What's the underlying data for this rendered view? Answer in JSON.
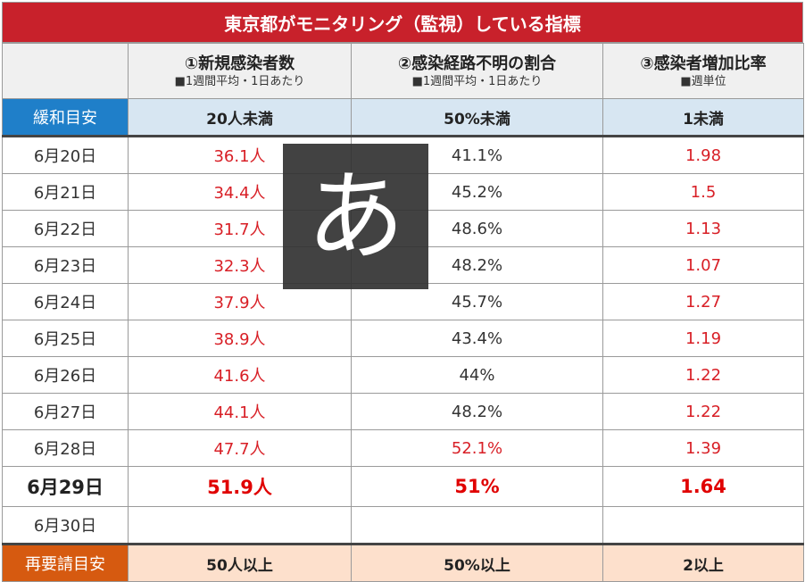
{
  "title": "東京都がモニタリング（監視）している指標",
  "headers": [
    {
      "main": "①新規感染者数",
      "sub": "■1週間平均・1日あたり"
    },
    {
      "main": "②感染経路不明の割合",
      "sub": "■1週間平均・1日あたり"
    },
    {
      "main": "③感染者増加比率",
      "sub": "■週単位"
    }
  ],
  "guide": {
    "label": "緩和目安",
    "values": [
      "20人未満",
      "50%未満",
      "1未満"
    ]
  },
  "days": [
    {
      "date": "6月20日",
      "v1": "36.1人",
      "v2": "41.1%",
      "v3": "1.98"
    },
    {
      "date": "6月21日",
      "v1": "34.4人",
      "v2": "45.2%",
      "v3": "1.5"
    },
    {
      "date": "6月22日",
      "v1": "31.7人",
      "v2": "48.6%",
      "v3": "1.13"
    },
    {
      "date": "6月23日",
      "v1": "32.3人",
      "v2": "48.2%",
      "v3": "1.07"
    },
    {
      "date": "6月24日",
      "v1": "37.9人",
      "v2": "45.7%",
      "v3": "1.27"
    },
    {
      "date": "6月25日",
      "v1": "38.9人",
      "v2": "43.4%",
      "v3": "1.19"
    },
    {
      "date": "6月26日",
      "v1": "41.6人",
      "v2": "44%",
      "v3": "1.22"
    },
    {
      "date": "6月27日",
      "v1": "44.1人",
      "v2": "48.2%",
      "v3": "1.22"
    },
    {
      "date": "6月28日",
      "v1": "47.7人",
      "v2": "52.1%",
      "v3": "1.39"
    }
  ],
  "today": {
    "date": "6月29日",
    "v1": "51.9人",
    "v2": "51%",
    "v3": "1.64"
  },
  "next": {
    "date": "6月30日"
  },
  "limit": {
    "label": "再要請目安",
    "values": [
      "50人以上",
      "50%以上",
      "2以上"
    ]
  },
  "ime_indicator": {
    "glyph": "あ"
  }
}
